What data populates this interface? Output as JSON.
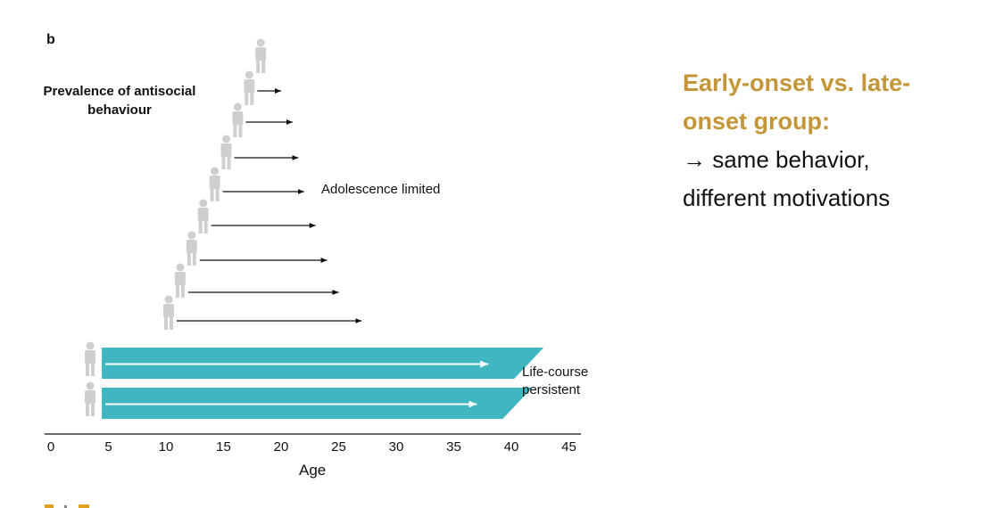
{
  "figure": {
    "panel_letter": "b",
    "y_title": "Prevalence of antisocial behaviour",
    "x_title": "Age",
    "adolescence_label": "Adolescence limited",
    "life_course_label": [
      "Life-course",
      "persistent"
    ],
    "ticks": [
      "0",
      "5",
      "10",
      "15",
      "20",
      "25",
      "30",
      "35",
      "40",
      "45"
    ],
    "adolescence_limited_groups": [
      {
        "onset_age": 18,
        "end_age": 20
      },
      {
        "onset_age": 17,
        "end_age": 21
      },
      {
        "onset_age": 16,
        "end_age": 21.5
      },
      {
        "onset_age": 15,
        "end_age": 22
      },
      {
        "onset_age": 14,
        "end_age": 23
      },
      {
        "onset_age": 13,
        "end_age": 24
      },
      {
        "onset_age": 12,
        "end_age": 25
      },
      {
        "onset_age": 11,
        "end_age": 27
      },
      {
        "onset_age": 10,
        "end_age": null
      }
    ],
    "life_course_groups": [
      {
        "onset_age": 4.5,
        "end_age": 38
      },
      {
        "onset_age": 4.5,
        "end_age": 37
      }
    ],
    "colors": {
      "band": "#40b7c0",
      "person": "#cfcfcf",
      "arrow": "#111111",
      "band_arrow": "#ffffff"
    }
  },
  "side_panel": {
    "heading": "Early-onset vs. late-onset group:",
    "bullet_line1": "→ same behavior,",
    "bullet_line2": "different motivations"
  },
  "footer": {
    "color": "#e0a020"
  }
}
